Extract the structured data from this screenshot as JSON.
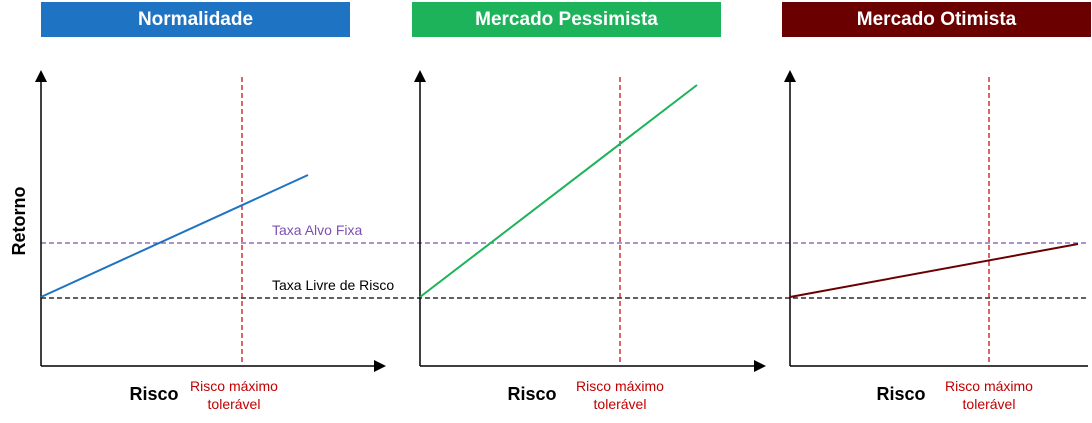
{
  "colors": {
    "normalidade": "#1F73C3",
    "pessimista": "#1DB35A",
    "otimista": "#6B0000",
    "alvo_line": "#7B50B0",
    "livre_line": "#000000",
    "max_risk_line": "#C00000"
  },
  "labels": {
    "y_axis": "Retorno",
    "x_axis": "Risco",
    "max_risk_line1": "Risco máximo",
    "max_risk_line2": "tolerável",
    "taxa_alvo": "Taxa Alvo Fixa",
    "taxa_livre": "Taxa Livre de Risco"
  },
  "panels": [
    {
      "title": "Normalidade"
    },
    {
      "title": "Mercado Pessimista"
    },
    {
      "title": "Mercado Otimista"
    }
  ]
}
